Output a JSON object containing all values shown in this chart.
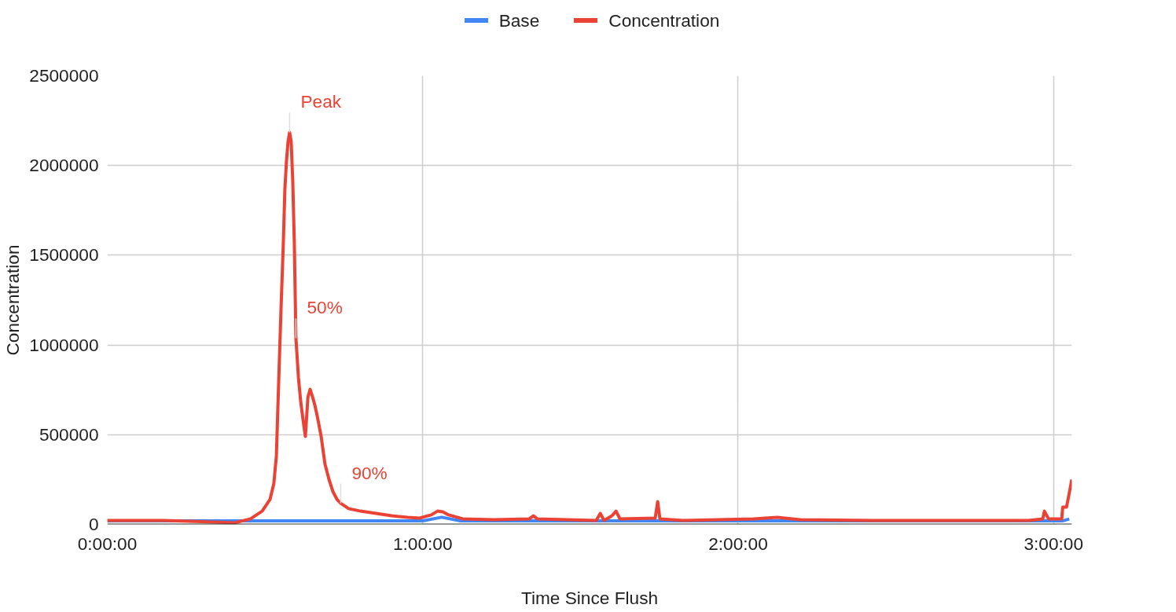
{
  "chart_data": {
    "type": "line",
    "xlabel": "Time Since Flush",
    "ylabel": "Concentration",
    "legend": "top",
    "grid": true,
    "line_style": "solid",
    "marker": "none",
    "xlim": [
      0,
      3.058
    ],
    "xticks": [
      {
        "value": 0,
        "label": "0:00:00"
      },
      {
        "value": 1,
        "label": "1:00:00"
      },
      {
        "value": 2,
        "label": "2:00:00"
      },
      {
        "value": 3,
        "label": "3:00:00"
      }
    ],
    "ylim": [
      0,
      2500000
    ],
    "yticks": [
      0,
      500000,
      1000000,
      1500000,
      2000000,
      2500000
    ],
    "annotations": [
      {
        "text": "Peak",
        "x": 0.578,
        "y": 2185000
      },
      {
        "text": "50%",
        "x": 0.598,
        "y": 1038000
      },
      {
        "text": "90%",
        "x": 0.74,
        "y": 118000
      }
    ],
    "series": [
      {
        "name": "Base",
        "color": "#4285f4",
        "x": [
          0,
          1.0,
          1.06,
          1.12,
          3.03,
          3.05
        ],
        "values": [
          20000,
          20000,
          40000,
          20000,
          20000,
          30000
        ]
      },
      {
        "name": "Concentration",
        "color": "#ea4335",
        "x": [
          0,
          0.179,
          0.404,
          0.454,
          0.491,
          0.516,
          0.528,
          0.536,
          0.543,
          0.551,
          0.558,
          0.563,
          0.568,
          0.573,
          0.578,
          0.583,
          0.588,
          0.593,
          0.598,
          0.606,
          0.613,
          0.621,
          0.628,
          0.636,
          0.643,
          0.651,
          0.658,
          0.666,
          0.678,
          0.69,
          0.703,
          0.715,
          0.728,
          0.74,
          0.765,
          0.803,
          0.852,
          0.902,
          0.952,
          0.99,
          1.027,
          1.047,
          1.064,
          1.082,
          1.127,
          1.226,
          1.338,
          1.351,
          1.363,
          1.55,
          1.563,
          1.575,
          1.6,
          1.613,
          1.625,
          1.737,
          1.745,
          1.752,
          1.825,
          2.049,
          2.124,
          2.198,
          2.423,
          2.921,
          2.966,
          2.971,
          2.984,
          3.026,
          3.029,
          3.041,
          3.046,
          3.058
        ],
        "values": [
          22000,
          22000,
          9000,
          31000,
          74000,
          140000,
          228000,
          381000,
          775000,
          1213000,
          1563000,
          1869000,
          2023000,
          2132000,
          2185000,
          2132000,
          1913000,
          1563000,
          1038000,
          819000,
          687000,
          578000,
          490000,
          709000,
          753000,
          709000,
          665000,
          600000,
          490000,
          337000,
          250000,
          184000,
          140000,
          118000,
          88000,
          74000,
          61000,
          48000,
          39000,
          35000,
          53000,
          74000,
          70000,
          53000,
          31000,
          26000,
          31000,
          48000,
          31000,
          22000,
          61000,
          22000,
          48000,
          74000,
          31000,
          35000,
          127000,
          31000,
          22000,
          31000,
          39000,
          26000,
          22000,
          22000,
          31000,
          74000,
          31000,
          31000,
          96000,
          96000,
          140000,
          250000
        ]
      }
    ]
  }
}
